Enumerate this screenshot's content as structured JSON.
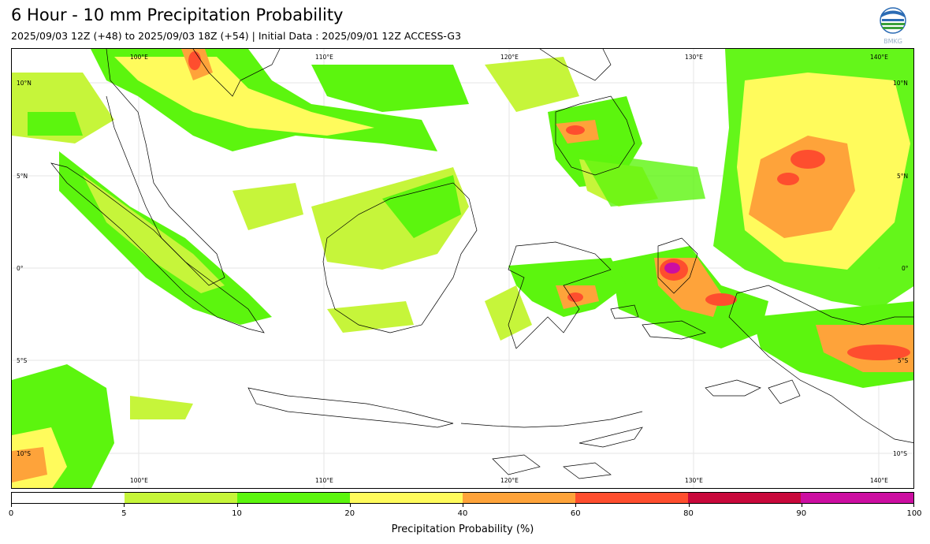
{
  "header": {
    "title": "6 Hour - 10 mm Precipitation Probability",
    "subtitle": "2025/09/03 12Z (+48) to 2025/09/03 18Z (+54) | Initial Data : 2025/09/01 12Z ACCESS-G3",
    "logo_text": "BMKG"
  },
  "map": {
    "top_lon_labels": [
      "100°E",
      "110°E",
      "120°E",
      "130°E",
      "140°E"
    ],
    "bottom_lon_labels": [
      "100°E",
      "110°E",
      "120°E",
      "130°E",
      "140°E"
    ],
    "left_lat_labels": [
      "10°N",
      "5°N",
      "0°",
      "5°S",
      "10°S"
    ],
    "right_lat_labels": [
      "10°N",
      "5°N",
      "0°",
      "5°S",
      "10°S"
    ],
    "lon_range": [
      93,
      142
    ],
    "lat_range": [
      -12,
      11
    ]
  },
  "colorbar": {
    "title": "Precipitation Probability (%)",
    "ticks": [
      "0",
      "5",
      "10",
      "20",
      "40",
      "60",
      "80",
      "90",
      "100"
    ],
    "colors": [
      "#ffffff",
      "#c6f53a",
      "#5cf50e",
      "#fffb5c",
      "#fea33a",
      "#fe4e2e",
      "#c8083b",
      "#cc0ea1"
    ]
  },
  "colors": {
    "p5": "#c6f53a",
    "p10": "#5cf50e",
    "p20": "#fffb5c",
    "p40": "#fea33a",
    "p60": "#fe4e2e",
    "p80": "#c8083b",
    "p90": "#cc0ea1"
  }
}
